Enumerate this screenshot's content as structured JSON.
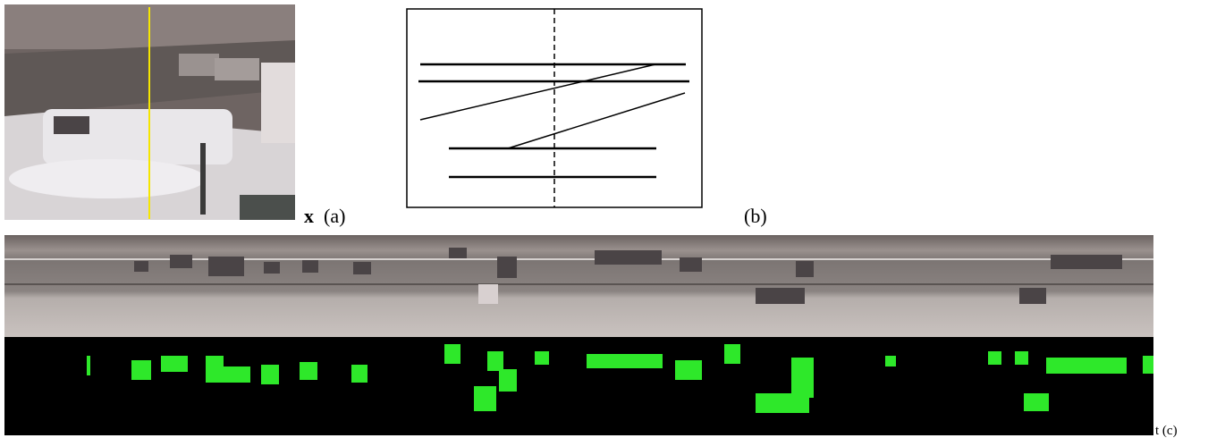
{
  "figure": {
    "axis_x": "x",
    "panel_a": "(a)",
    "panel_b": "(b)",
    "panel_c": "t (c)"
  }
}
